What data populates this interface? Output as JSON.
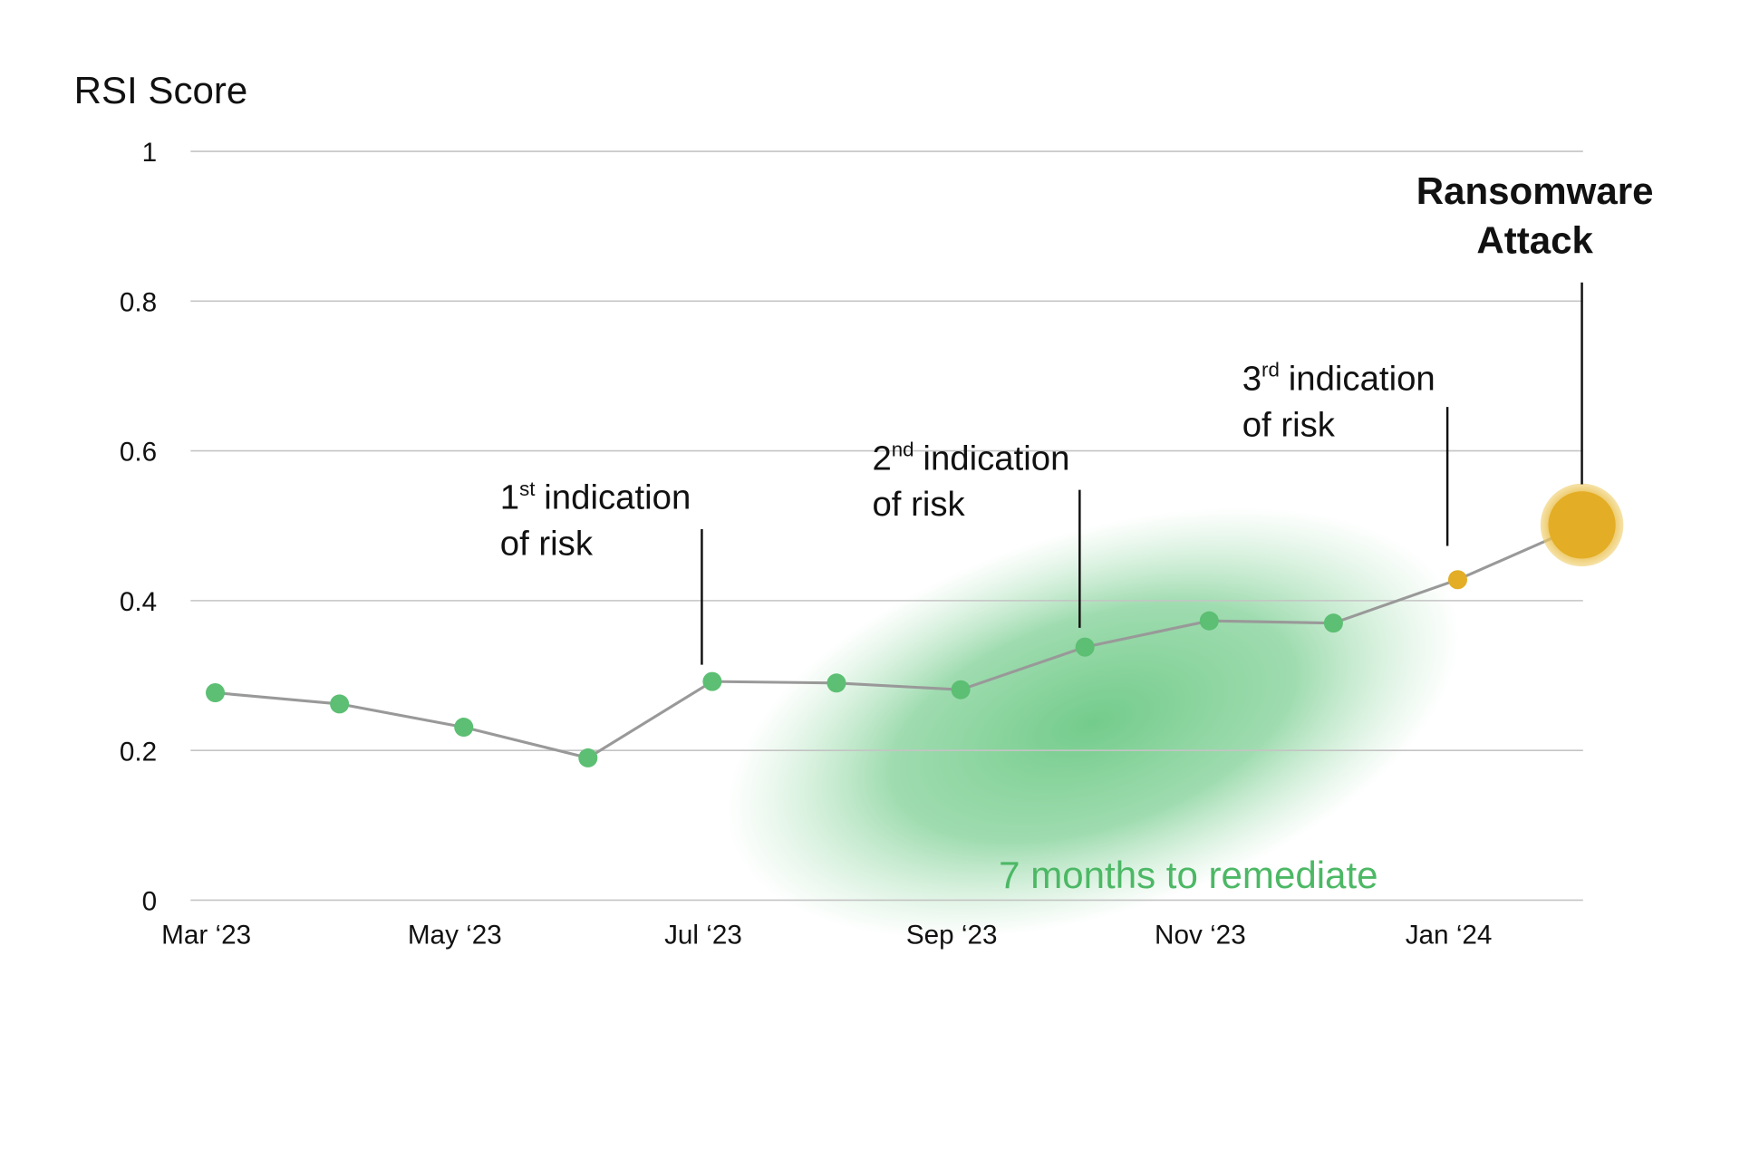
{
  "chart_data": {
    "type": "line",
    "y_axis_title": "RSI Score",
    "categories": [
      "Mar ‘23",
      null,
      "May ‘23",
      null,
      "Jul ‘23",
      null,
      "Sep ‘23",
      null,
      "Nov ‘23",
      null,
      "Jan ‘24",
      null
    ],
    "values": [
      0.277,
      0.262,
      0.231,
      0.19,
      0.292,
      0.29,
      0.281,
      0.338,
      0.373,
      0.37,
      0.428,
      0.501
    ],
    "point_colors": [
      "#5cbf73",
      "#5cbf73",
      "#5cbf73",
      "#5cbf73",
      "#5cbf73",
      "#5cbf73",
      "#5cbf73",
      "#5cbf73",
      "#5cbf73",
      "#5cbf73",
      "#e3ad25",
      "#e3ad25"
    ],
    "line_color": "#999999",
    "ylim": [
      0,
      1
    ],
    "yticks": [
      0,
      0.2,
      0.4,
      0.6,
      0.8,
      1
    ],
    "grid": true,
    "annotations": [
      {
        "number": "1",
        "suffix": "st",
        "text": "indication",
        "line2": "of risk"
      },
      {
        "number": "2",
        "suffix": "nd",
        "text": "indication",
        "line2": "of risk"
      },
      {
        "number": "3",
        "suffix": "rd",
        "text": "indication",
        "line2": "of risk"
      }
    ],
    "event_label": [
      "Ransomware",
      "Attack"
    ],
    "remediation_label": "7 months to remediate"
  }
}
